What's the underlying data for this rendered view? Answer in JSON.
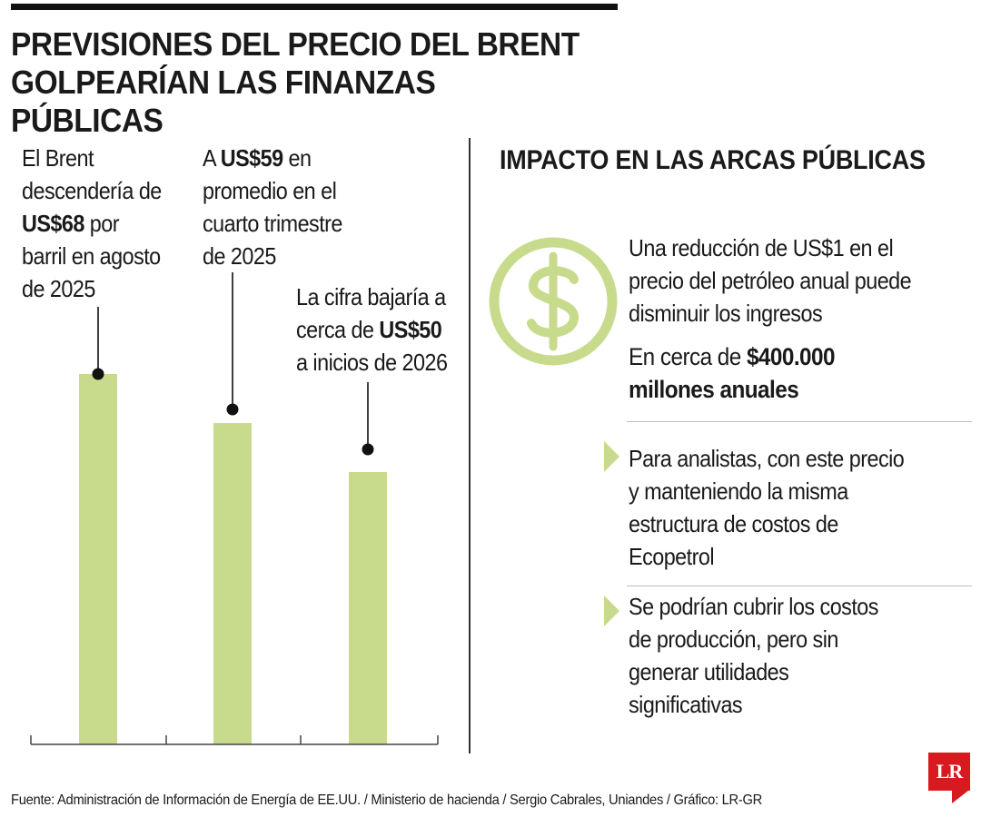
{
  "title": {
    "line1": "PREVISIONES DEL PRECIO DEL BRENT",
    "line2": "GOLPEARÍAN LAS FINANZAS PÚBLICAS"
  },
  "annotations": [
    {
      "lines": [
        [
          "El Brent"
        ],
        [
          "descendería de"
        ],
        [
          {
            "b": "US$68"
          },
          " por"
        ],
        [
          "barril en agosto"
        ],
        [
          "de 2025"
        ]
      ]
    },
    {
      "lines": [
        [
          "A ",
          {
            "b": "US$59"
          },
          " en"
        ],
        [
          "promedio en el"
        ],
        [
          "cuarto trimestre"
        ],
        [
          "de 2025"
        ]
      ]
    },
    {
      "lines": [
        [
          "La cifra bajaría a"
        ],
        [
          "cerca de ",
          {
            "b": "US$50"
          }
        ],
        [
          "a inicios de 2026"
        ]
      ]
    }
  ],
  "chart_data": {
    "type": "bar",
    "categories": [
      "agosto de 2025",
      "cuarto trimestre de 2025",
      "inicios de 2026"
    ],
    "values": [
      68,
      59,
      50
    ],
    "unit": "US$ por barril",
    "title": "",
    "xlabel": "",
    "ylabel": "",
    "grid": false,
    "bar_color": "#c8db8c",
    "marker_color": "#111111"
  },
  "impact": {
    "heading": "IMPACTO EN LAS ARCAS PÚBLICAS",
    "icon": "dollar-circle-icon",
    "text_lines": [
      "Una reducción de US$1 en el",
      "precio del petróleo anual puede",
      "disminuir los ingresos"
    ],
    "amount_prefix": "En cerca de ",
    "amount_bold": "$400.000",
    "amount_line2": "millones anuales",
    "bullets": [
      {
        "lines": [
          "Para analistas, con este precio",
          "y manteniendo la misma",
          "estructura de costos de",
          "Ecopetrol"
        ]
      },
      {
        "lines": [
          "Se podrían cubrir los costos",
          "de producción, pero sin",
          "generar utilidades",
          "significativas"
        ]
      }
    ]
  },
  "footer": "Fuente: Administración de Información de Energía de EE.UU. / Ministerio de hacienda / Sergio Cabrales, Uniandes / Gráfico: LR-GR",
  "logo": "LR",
  "colors": {
    "accent_green": "#c8db8c",
    "brand_red": "#d71920",
    "text": "#1a1a1a"
  }
}
